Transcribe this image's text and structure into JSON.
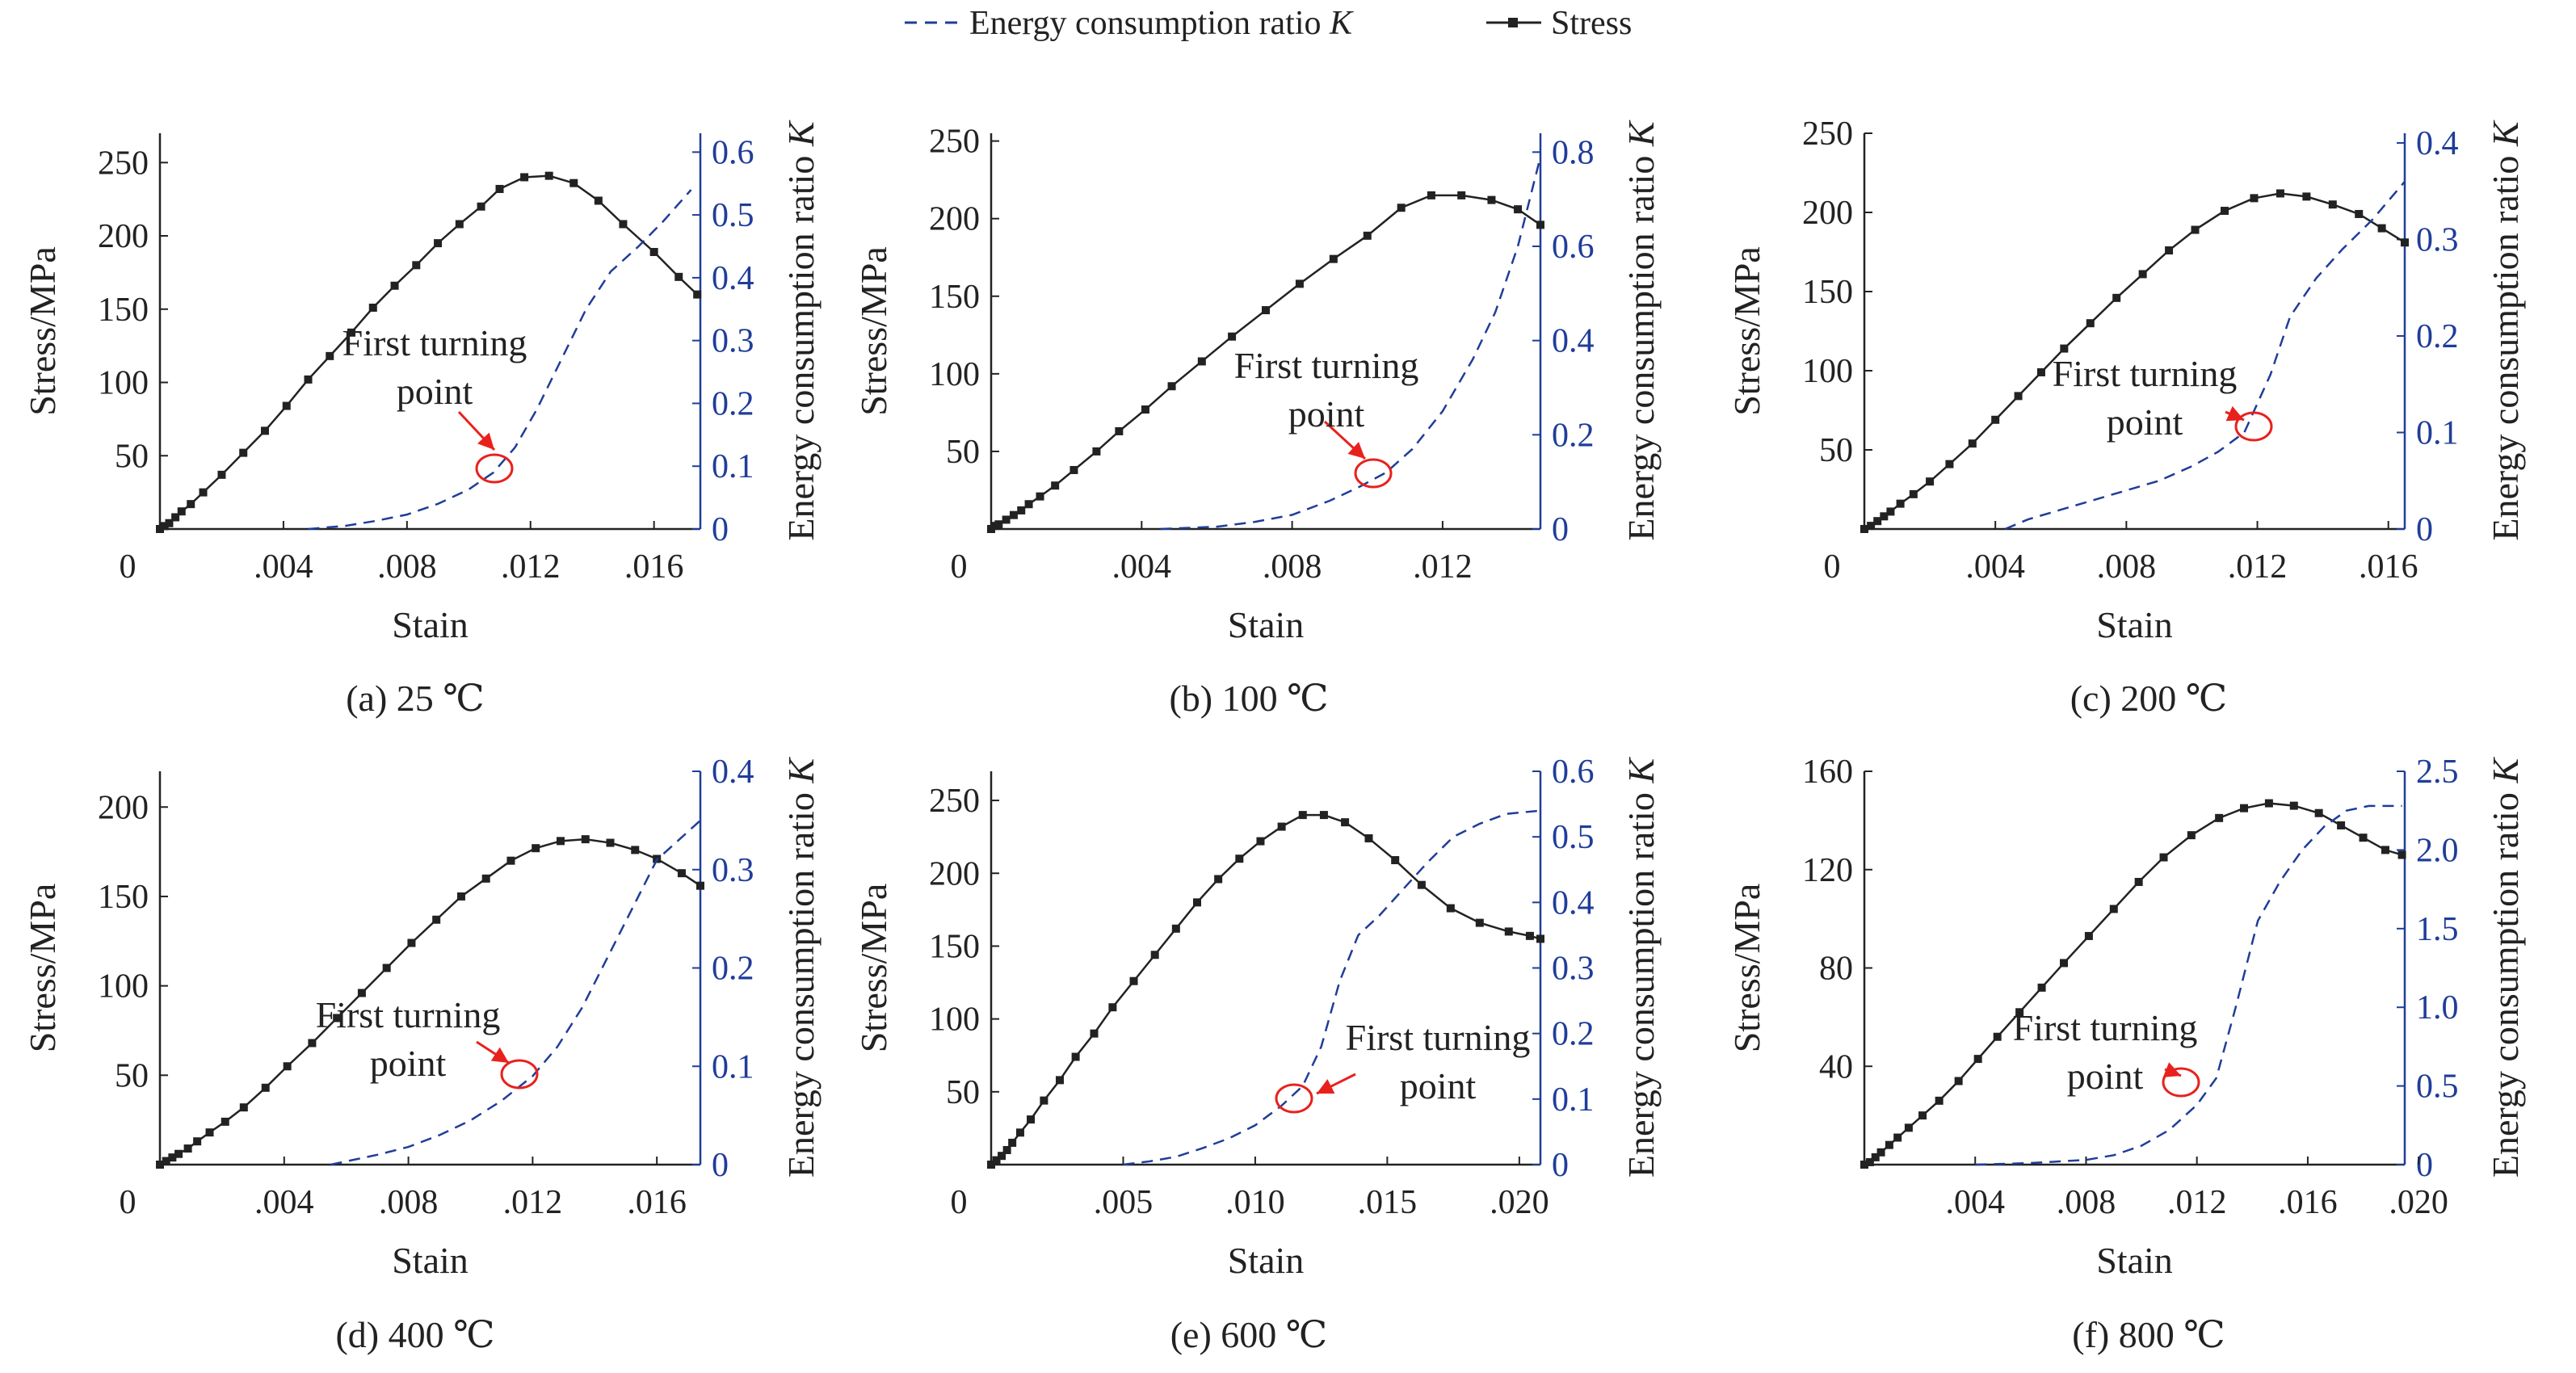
{
  "legend": {
    "energy_label": "Energy consumption ratio ",
    "k_symbol": "K",
    "stress_label": "Stress"
  },
  "colors": {
    "stress": "#222222",
    "energy": "#1f3d99",
    "annotation": "#e8211d"
  },
  "annotation_text": [
    "First turning",
    "point"
  ],
  "chart_data": [
    {
      "type": "line",
      "caption": "(a) 25 ℃",
      "xlabel": "Stain",
      "ylabel": "Stress/MPa",
      "y2label": "Energy consumption ratio K",
      "xlim": [
        0,
        0.0175
      ],
      "ylim": [
        0,
        270
      ],
      "y2lim": [
        0,
        0.63
      ],
      "xticks": [
        0.004,
        0.008,
        0.012,
        0.016
      ],
      "xdec": 3,
      "zero_left": true,
      "yticks": [
        50,
        100,
        150,
        200,
        250
      ],
      "y2ticks": [
        0,
        0.1,
        0.2,
        0.3,
        0.4,
        0.5,
        0.6
      ],
      "y2dec": 1,
      "series": [
        {
          "name": "Stress",
          "x": [
            0,
            0.00015,
            0.0003,
            0.0005,
            0.0007,
            0.001,
            0.0014,
            0.002,
            0.0027,
            0.0034,
            0.0041,
            0.0048,
            0.0055,
            0.0062,
            0.0069,
            0.0076,
            0.0083,
            0.009,
            0.0097,
            0.0104,
            0.011,
            0.0118,
            0.0126,
            0.0134,
            0.0142,
            0.015,
            0.016,
            0.0168,
            0.0174
          ],
          "y": [
            0,
            2,
            4,
            8,
            12,
            17,
            25,
            37,
            52,
            67,
            84,
            102,
            118,
            134,
            151,
            166,
            180,
            195,
            208,
            220,
            232,
            240,
            241,
            236,
            224,
            208,
            189,
            172,
            160
          ]
        },
        {
          "name": "Energy consumption ratio K",
          "x": [
            0.0048,
            0.006,
            0.007,
            0.008,
            0.009,
            0.01,
            0.0108,
            0.0115,
            0.0122,
            0.013,
            0.0138,
            0.0146,
            0.0155,
            0.0163,
            0.0172
          ],
          "y": [
            0,
            0.005,
            0.013,
            0.023,
            0.04,
            0.063,
            0.09,
            0.13,
            0.19,
            0.27,
            0.35,
            0.41,
            0.45,
            0.49,
            0.54
          ]
        }
      ],
      "turning_point": {
        "x": 0.0108,
        "k": 0.09
      }
    },
    {
      "type": "line",
      "caption": "(b) 100 ℃",
      "xlabel": "Stain",
      "ylabel": "Stress/MPa",
      "y2label": "Energy consumption ratio K",
      "xlim": [
        0,
        0.0146
      ],
      "ylim": [
        0,
        255
      ],
      "y2lim": [
        0,
        0.84
      ],
      "xticks": [
        0.004,
        0.008,
        0.012
      ],
      "xdec": 3,
      "zero_left": true,
      "yticks": [
        50,
        100,
        150,
        200,
        250
      ],
      "y2ticks": [
        0,
        0.2,
        0.4,
        0.6,
        0.8
      ],
      "y2dec": 1,
      "series": [
        {
          "name": "Stress",
          "x": [
            0,
            0.0001,
            0.0002,
            0.0004,
            0.0006,
            0.0008,
            0.001,
            0.0013,
            0.0017,
            0.0022,
            0.0028,
            0.0034,
            0.0041,
            0.0048,
            0.0056,
            0.0064,
            0.0073,
            0.0082,
            0.0091,
            0.01,
            0.0109,
            0.0117,
            0.0125,
            0.0133,
            0.014,
            0.0146
          ],
          "y": [
            0,
            2,
            3,
            6,
            9,
            12,
            16,
            21,
            28,
            38,
            50,
            63,
            77,
            92,
            108,
            124,
            141,
            158,
            174,
            189,
            207,
            215,
            215,
            212,
            206,
            196
          ]
        },
        {
          "name": "Energy consumption ratio K",
          "x": [
            0.0045,
            0.006,
            0.007,
            0.008,
            0.009,
            0.0098,
            0.0105,
            0.0112,
            0.012,
            0.0128,
            0.0134,
            0.014,
            0.0146
          ],
          "y": [
            0,
            0.005,
            0.015,
            0.03,
            0.06,
            0.09,
            0.12,
            0.17,
            0.25,
            0.36,
            0.46,
            0.6,
            0.79
          ]
        }
      ],
      "turning_point": {
        "x": 0.0105,
        "k": 0.12
      }
    },
    {
      "type": "line",
      "caption": "(c) 200 ℃",
      "xlabel": "Stain",
      "ylabel": "Stress/MPa",
      "y2label": "Energy consumption ratio K",
      "xlim": [
        0,
        0.0165
      ],
      "ylim": [
        0,
        250
      ],
      "y2lim": [
        0,
        0.41
      ],
      "xticks": [
        0.004,
        0.008,
        0.012,
        0.016
      ],
      "xdec": 3,
      "zero_left": true,
      "yticks": [
        50,
        100,
        150,
        200,
        250
      ],
      "y2ticks": [
        0,
        0.1,
        0.2,
        0.3,
        0.4
      ],
      "y2dec": 1,
      "series": [
        {
          "name": "Stress",
          "x": [
            0,
            0.0002,
            0.0004,
            0.0006,
            0.0008,
            0.0011,
            0.0015,
            0.002,
            0.0026,
            0.0033,
            0.004,
            0.0047,
            0.0054,
            0.0061,
            0.0069,
            0.0077,
            0.0085,
            0.0093,
            0.0101,
            0.011,
            0.0119,
            0.0127,
            0.0135,
            0.0143,
            0.0151,
            0.0158,
            0.0165
          ],
          "y": [
            0,
            2,
            5,
            8,
            11,
            16,
            22,
            30,
            41,
            54,
            69,
            84,
            99,
            114,
            130,
            146,
            161,
            176,
            189,
            201,
            209,
            212,
            210,
            205,
            199,
            190,
            181
          ]
        },
        {
          "name": "Energy consumption ratio K",
          "x": [
            0.0043,
            0.005,
            0.006,
            0.007,
            0.008,
            0.009,
            0.01,
            0.0108,
            0.0116,
            0.0124,
            0.013,
            0.0138,
            0.0146,
            0.0155,
            0.0165
          ],
          "y": [
            0,
            0.01,
            0.02,
            0.03,
            0.04,
            0.05,
            0.065,
            0.08,
            0.1,
            0.16,
            0.22,
            0.26,
            0.29,
            0.32,
            0.36
          ]
        }
      ],
      "turning_point": {
        "x": 0.0116,
        "k": 0.1
      }
    },
    {
      "type": "line",
      "caption": "(d) 400 ℃",
      "xlabel": "Stain",
      "ylabel": "Stress/MPa",
      "y2label": "Energy consumption ratio K",
      "xlim": [
        0,
        0.0174
      ],
      "ylim": [
        0,
        220
      ],
      "y2lim": [
        0,
        0.4
      ],
      "xticks": [
        0.004,
        0.008,
        0.012,
        0.016
      ],
      "xdec": 3,
      "zero_left": true,
      "yticks": [
        50,
        100,
        150,
        200
      ],
      "y2ticks": [
        0,
        0.1,
        0.2,
        0.3,
        0.4
      ],
      "y2dec": 1,
      "series": [
        {
          "name": "Stress",
          "x": [
            0,
            0.0002,
            0.0004,
            0.0006,
            0.0009,
            0.0012,
            0.0016,
            0.0021,
            0.0027,
            0.0034,
            0.0041,
            0.0049,
            0.0057,
            0.0065,
            0.0073,
            0.0081,
            0.0089,
            0.0097,
            0.0105,
            0.0113,
            0.0121,
            0.0129,
            0.0137,
            0.0145,
            0.0153,
            0.016,
            0.0168,
            0.0174
          ],
          "y": [
            0,
            2,
            4,
            6,
            9,
            13,
            18,
            24,
            32,
            43,
            55,
            68,
            82,
            96,
            110,
            124,
            137,
            150,
            160,
            170,
            177,
            181,
            182,
            180,
            176,
            171,
            163,
            156
          ]
        },
        {
          "name": "Energy consumption ratio K",
          "x": [
            0.0055,
            0.007,
            0.008,
            0.009,
            0.01,
            0.011,
            0.012,
            0.0128,
            0.0136,
            0.0144,
            0.0152,
            0.016,
            0.0167,
            0.0174
          ],
          "y": [
            0,
            0.01,
            0.018,
            0.03,
            0.045,
            0.065,
            0.09,
            0.12,
            0.16,
            0.21,
            0.26,
            0.31,
            0.33,
            0.35
          ]
        }
      ],
      "turning_point": {
        "x": 0.012,
        "k": 0.09
      }
    },
    {
      "type": "line",
      "caption": "(e) 600 ℃",
      "xlabel": "Stain",
      "ylabel": "Stress/MPa",
      "y2label": "Energy consumption ratio K",
      "xlim": [
        0,
        0.0208
      ],
      "ylim": [
        0,
        270
      ],
      "y2lim": [
        0,
        0.6
      ],
      "xticks": [
        0.005,
        0.01,
        0.015,
        0.02
      ],
      "xdec": 3,
      "zero_left": true,
      "yticks": [
        50,
        100,
        150,
        200,
        250
      ],
      "y2ticks": [
        0,
        0.1,
        0.2,
        0.3,
        0.4,
        0.5,
        0.6
      ],
      "y2dec": 1,
      "series": [
        {
          "name": "Stress",
          "x": [
            0,
            0.0002,
            0.0004,
            0.0006,
            0.0008,
            0.0011,
            0.0015,
            0.002,
            0.0026,
            0.0032,
            0.0039,
            0.0046,
            0.0054,
            0.0062,
            0.007,
            0.0078,
            0.0086,
            0.0094,
            0.0102,
            0.011,
            0.0118,
            0.0126,
            0.0134,
            0.0143,
            0.0153,
            0.0163,
            0.0174,
            0.0185,
            0.0196,
            0.0204,
            0.0208
          ],
          "y": [
            0,
            3,
            6,
            10,
            15,
            22,
            31,
            44,
            58,
            74,
            90,
            108,
            126,
            144,
            162,
            180,
            196,
            210,
            222,
            232,
            240,
            240,
            235,
            224,
            209,
            192,
            176,
            166,
            160,
            157,
            155
          ]
        },
        {
          "name": "Energy consumption ratio K",
          "x": [
            0.005,
            0.006,
            0.007,
            0.008,
            0.009,
            0.01,
            0.011,
            0.0118,
            0.0125,
            0.0132,
            0.0139,
            0.0147,
            0.0156,
            0.0165,
            0.0175,
            0.0185,
            0.0195,
            0.0208
          ],
          "y": [
            0,
            0.005,
            0.012,
            0.025,
            0.04,
            0.06,
            0.09,
            0.12,
            0.18,
            0.28,
            0.35,
            0.38,
            0.42,
            0.46,
            0.5,
            0.52,
            0.535,
            0.54
          ]
        }
      ],
      "turning_point": {
        "x": 0.011,
        "k": 0.1
      }
    },
    {
      "type": "line",
      "caption": "(f) 800 ℃",
      "xlabel": "Stain",
      "ylabel": "Stress/MPa",
      "y2label": "Energy consumption ratio K",
      "xlim": [
        0,
        0.0195
      ],
      "ylim": [
        0,
        160
      ],
      "y2lim": [
        0,
        2.5
      ],
      "xticks": [
        0.004,
        0.008,
        0.012,
        0.016,
        0.02
      ],
      "xdec": 3,
      "zero_left": false,
      "yticks": [
        40,
        80,
        120,
        160
      ],
      "y2ticks": [
        0,
        0.5,
        1.0,
        1.5,
        2.0,
        2.5
      ],
      "y2dec": 1,
      "series": [
        {
          "name": "Stress",
          "x": [
            0,
            0.0002,
            0.0004,
            0.0006,
            0.0009,
            0.0012,
            0.0016,
            0.0021,
            0.0027,
            0.0034,
            0.0041,
            0.0048,
            0.0056,
            0.0064,
            0.0072,
            0.0081,
            0.009,
            0.0099,
            0.0108,
            0.0118,
            0.0128,
            0.0137,
            0.0146,
            0.0155,
            0.0164,
            0.0172,
            0.018,
            0.0188,
            0.0194
          ],
          "y": [
            0,
            1,
            3,
            5,
            8,
            11,
            15,
            20,
            26,
            34,
            43,
            52,
            62,
            72,
            82,
            93,
            104,
            115,
            125,
            134,
            141,
            145,
            147,
            146,
            143,
            138,
            133,
            128,
            126
          ]
        },
        {
          "name": "Energy consumption ratio K",
          "x": [
            0.004,
            0.006,
            0.008,
            0.009,
            0.01,
            0.011,
            0.012,
            0.0127,
            0.0134,
            0.0142,
            0.015,
            0.0158,
            0.0166,
            0.0174,
            0.0182,
            0.0194
          ],
          "y": [
            0,
            0.01,
            0.03,
            0.06,
            0.12,
            0.22,
            0.38,
            0.55,
            1.0,
            1.55,
            1.8,
            2.0,
            2.15,
            2.25,
            2.28,
            2.28
          ]
        }
      ],
      "turning_point": {
        "x": 0.0128,
        "k": 0.55
      }
    }
  ]
}
